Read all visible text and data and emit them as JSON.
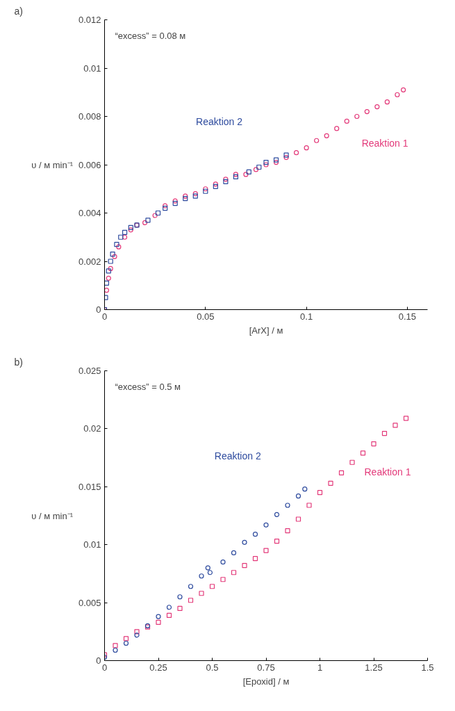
{
  "chart_data": [
    {
      "type": "scatter",
      "xlabel": "[ArX] / м",
      "ylabel": "υ / м min⁻¹",
      "annotations": [
        "a)",
        "“excess” = 0.08 м"
      ],
      "xlim": [
        0,
        0.16
      ],
      "ylim": [
        0,
        0.012
      ],
      "xticks": [
        0,
        0.05,
        0.1,
        0.15
      ],
      "yticks": [
        0,
        0.002,
        0.004,
        0.006,
        0.008,
        0.01,
        0.012
      ],
      "grid": false,
      "legend": false,
      "series": [
        {
          "name": "Reaktion 1",
          "color": "#e33a7a",
          "marker": "circle",
          "x": [
            0,
            0.001,
            0.002,
            0.003,
            0.005,
            0.007,
            0.01,
            0.013,
            0.016,
            0.02,
            0.025,
            0.03,
            0.035,
            0.04,
            0.045,
            0.05,
            0.055,
            0.06,
            0.065,
            0.07,
            0.075,
            0.08,
            0.085,
            0.09,
            0.095,
            0.1,
            0.105,
            0.11,
            0.115,
            0.12,
            0.125,
            0.13,
            0.135,
            0.14,
            0.145,
            0.148
          ],
          "values": [
            0,
            0.0008,
            0.0013,
            0.0017,
            0.0022,
            0.0026,
            0.003,
            0.0033,
            0.0035,
            0.0036,
            0.0039,
            0.0043,
            0.0045,
            0.0047,
            0.0048,
            0.005,
            0.0052,
            0.0054,
            0.0056,
            0.0056,
            0.0058,
            0.006,
            0.0061,
            0.0063,
            0.0065,
            0.0067,
            0.007,
            0.0072,
            0.0075,
            0.0078,
            0.008,
            0.0082,
            0.0084,
            0.0086,
            0.0089,
            0.0091
          ]
        },
        {
          "name": "Reaktion 2",
          "color": "#2e4b9e",
          "marker": "square",
          "x": [
            0,
            0.0005,
            0.001,
            0.002,
            0.003,
            0.004,
            0.006,
            0.008,
            0.01,
            0.013,
            0.016,
            0.0215,
            0.0265,
            0.03,
            0.035,
            0.04,
            0.045,
            0.05,
            0.055,
            0.06,
            0.065,
            0.0715,
            0.0765,
            0.08,
            0.085,
            0.09
          ],
          "values": [
            0,
            0.0005,
            0.0011,
            0.0016,
            0.002,
            0.0023,
            0.0027,
            0.003,
            0.0032,
            0.0034,
            0.0035,
            0.0037,
            0.004,
            0.0042,
            0.0044,
            0.0046,
            0.0047,
            0.0049,
            0.0051,
            0.0053,
            0.0055,
            0.0057,
            0.0059,
            0.0061,
            0.0062,
            0.0064
          ]
        }
      ]
    },
    {
      "type": "scatter",
      "xlabel": "[Epoxid] / м",
      "ylabel": "υ / м min⁻¹",
      "annotations": [
        "b)",
        "“excess” = 0.5 м"
      ],
      "xlim": [
        0,
        1.5
      ],
      "ylim": [
        0,
        0.025
      ],
      "xticks": [
        0,
        0.25,
        0.5,
        0.75,
        1,
        1.25,
        1.5
      ],
      "yticks": [
        0,
        0.005,
        0.01,
        0.015,
        0.02,
        0.025
      ],
      "grid": false,
      "legend": false,
      "series": [
        {
          "name": "Reaktion 1",
          "color": "#e33a7a",
          "marker": "square",
          "x": [
            0,
            0.05,
            0.1,
            0.15,
            0.2,
            0.25,
            0.3,
            0.35,
            0.4,
            0.45,
            0.5,
            0.55,
            0.6,
            0.65,
            0.7,
            0.75,
            0.8,
            0.85,
            0.9,
            0.95,
            1.0,
            1.05,
            1.1,
            1.15,
            1.2,
            1.25,
            1.3,
            1.35,
            1.4
          ],
          "values": [
            0.0005,
            0.0013,
            0.0019,
            0.0025,
            0.0029,
            0.0033,
            0.0039,
            0.0045,
            0.0052,
            0.0058,
            0.0064,
            0.007,
            0.0076,
            0.0082,
            0.0088,
            0.0095,
            0.0103,
            0.0112,
            0.0122,
            0.0134,
            0.0145,
            0.0153,
            0.0162,
            0.0171,
            0.0179,
            0.0187,
            0.0196,
            0.0203,
            0.0209
          ]
        },
        {
          "name": "Reaktion 2",
          "color": "#2e4b9e",
          "marker": "circle",
          "x": [
            0,
            0.05,
            0.1,
            0.15,
            0.2,
            0.25,
            0.3,
            0.35,
            0.4,
            0.45,
            0.48,
            0.49,
            0.55,
            0.6,
            0.65,
            0.7,
            0.75,
            0.8,
            0.85,
            0.9,
            0.93
          ],
          "values": [
            0.0003,
            0.0009,
            0.0015,
            0.0022,
            0.003,
            0.0038,
            0.0046,
            0.0055,
            0.0064,
            0.0073,
            0.008,
            0.0076,
            0.0085,
            0.0093,
            0.0102,
            0.0109,
            0.0117,
            0.0126,
            0.0134,
            0.0142,
            0.0148
          ]
        }
      ]
    }
  ]
}
